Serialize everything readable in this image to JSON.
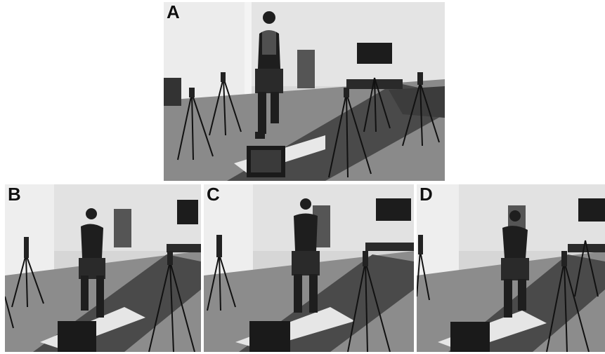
{
  "figure": {
    "panels": [
      {
        "id": "a",
        "label": "A"
      },
      {
        "id": "b",
        "label": "B"
      },
      {
        "id": "c",
        "label": "C"
      },
      {
        "id": "d",
        "label": "D"
      }
    ]
  }
}
